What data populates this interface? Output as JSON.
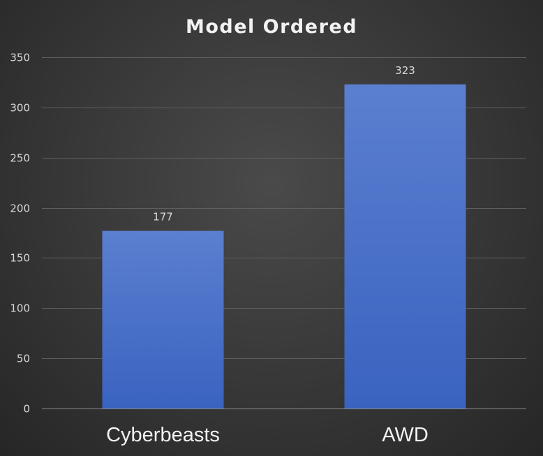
{
  "chart_data": {
    "type": "bar",
    "title": "Model Ordered",
    "categories": [
      "Cyberbeasts",
      "AWD"
    ],
    "values": [
      177,
      323
    ],
    "xlabel": "",
    "ylabel": "",
    "ylim": [
      0,
      350
    ],
    "yticks": [
      0,
      50,
      100,
      150,
      200,
      250,
      300,
      350
    ],
    "grid": true,
    "legend": "none",
    "data_labels": [
      "177",
      "323"
    ],
    "colors": {
      "bar_top": "#5b7fd0",
      "bar_bottom": "#3a63c0",
      "background": "#3a3a3a"
    }
  }
}
